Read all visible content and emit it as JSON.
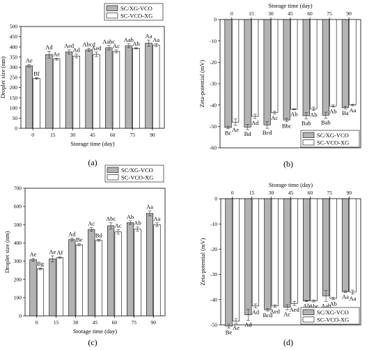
{
  "colors": {
    "gray": "#b3b3b3",
    "white": "#ffffff",
    "axis": "#000000"
  },
  "chart_data": [
    {
      "panel_label": "(a)",
      "type": "bar",
      "xlabel": "Storage time (day)",
      "ylabel": "Droplet size (nm)",
      "ylim": [
        0,
        500
      ],
      "yticks": [
        "0",
        "50",
        "100",
        "150",
        "200",
        "250",
        "300",
        "350",
        "400",
        "450",
        "500"
      ],
      "categories": [
        "0",
        "15",
        "30",
        "45",
        "60",
        "75",
        "90"
      ],
      "legend_position": "top-right",
      "series": [
        {
          "name": "SC/XG-VCO",
          "color": "#b3b3b3",
          "values": [
            307,
            362,
            375,
            385,
            395,
            405,
            418
          ],
          "errors": [
            6,
            17,
            10,
            7,
            11,
            10,
            15
          ],
          "labels": [
            "Ae",
            "Ad",
            "Aed",
            "Abcd",
            "Aabc",
            "Aab",
            "Aa"
          ]
        },
        {
          "name": "SC-VCO-XG",
          "color": "#ffffff",
          "values": [
            245,
            340,
            355,
            363,
            377,
            393,
            408
          ],
          "errors": [
            4,
            5,
            9,
            11,
            7,
            3,
            7
          ],
          "labels": [
            "Bf",
            "Ae",
            "Ad",
            "Aed",
            "Ac",
            "Ab",
            "Aa"
          ]
        }
      ]
    },
    {
      "panel_label": "(b)",
      "type": "bar",
      "xlabel": "Storage time (day)",
      "ylabel": "Zeta-potential (mV)",
      "ylim": [
        -60,
        0
      ],
      "yticks": [
        "0",
        "-10",
        "-20",
        "-30",
        "-40",
        "-50",
        "-60"
      ],
      "categories": [
        "0",
        "15",
        "30",
        "45",
        "60",
        "75",
        "90"
      ],
      "x_axis_position": "top",
      "legend_position": "bottom-right",
      "series": [
        {
          "name": "SC/XG-VCO",
          "color": "#b3b3b3",
          "values": [
            -50.5,
            -50.3,
            -49.3,
            -47.0,
            -45.0,
            -44.8,
            -41.2
          ],
          "errors": [
            0.6,
            1.2,
            1.6,
            0.8,
            1.5,
            1.4,
            0.6
          ],
          "labels": [
            "Bc",
            "Bd",
            "Bcd",
            "Bbc",
            "Bab",
            "Bab",
            "Ba"
          ]
        },
        {
          "name": "SC-VCO-XG",
          "color": "#ffffff",
          "values": [
            -48.0,
            -45.3,
            -43.5,
            -42.0,
            -41.8,
            -40.5,
            -40.0
          ],
          "errors": [
            1.5,
            1.0,
            0.6,
            0.3,
            0.8,
            0.5,
            0.4
          ],
          "labels": [
            "Ae",
            "Ad",
            "Ac",
            "Ab",
            "Ab",
            "Ab",
            "Aa"
          ]
        }
      ]
    },
    {
      "panel_label": "(c)",
      "type": "bar",
      "xlabel": "Storage time (day)",
      "ylabel": "Droplet size (nm)",
      "ylim": [
        0,
        700
      ],
      "yticks": [
        "0",
        "100",
        "200",
        "300",
        "400",
        "500",
        "600",
        "700"
      ],
      "categories": [
        "0",
        "15",
        "30",
        "45",
        "60",
        "75",
        "90"
      ],
      "legend_position": "top-right",
      "series": [
        {
          "name": "SC/XG-VCO",
          "color": "#b3b3b3",
          "values": [
            308,
            313,
            418,
            474,
            494,
            511,
            562
          ],
          "errors": [
            8,
            16,
            8,
            10,
            17,
            10,
            14
          ],
          "labels": [
            "Ae",
            "Ae",
            "Ad",
            "Ac",
            "Abc",
            "Ab",
            "Aa"
          ]
        },
        {
          "name": "SC-VCO-XG",
          "color": "#ffffff",
          "values": [
            258,
            320,
            390,
            414,
            460,
            476,
            500
          ],
          "errors": [
            5,
            5,
            5,
            5,
            12,
            11,
            10
          ],
          "labels": [
            "Bg",
            "Af",
            "Be",
            "Bd",
            "Ac",
            "Ab",
            "Aa"
          ]
        }
      ]
    },
    {
      "panel_label": "(d)",
      "type": "bar",
      "xlabel": "Storage time (day)",
      "ylabel": "Zeta-potential (mV)",
      "ylim": [
        -50,
        0
      ],
      "yticks": [
        "0",
        "-10",
        "-20",
        "-30",
        "-40",
        "-50"
      ],
      "categories": [
        "0",
        "15",
        "30",
        "45",
        "60",
        "75",
        "90"
      ],
      "x_axis_position": "top",
      "legend_position": "bottom-right",
      "series": [
        {
          "name": "SC/XG-VCO",
          "color": "#b3b3b3",
          "values": [
            -50.5,
            -46.0,
            -44.0,
            -43.0,
            -40.5,
            -38.5,
            -36.8
          ],
          "errors": [
            0.8,
            2.2,
            0.5,
            1.0,
            0.3,
            2.2,
            0.3
          ],
          "labels": [
            "Be",
            "Ad",
            "Bcd",
            "Ac",
            "Ab",
            "Aab",
            "Aa"
          ]
        },
        {
          "name": "SC-VCO-XG",
          "color": "#ffffff",
          "values": [
            -48.5,
            -42.5,
            -42.5,
            -41.5,
            -40.5,
            -39.5,
            -37.0
          ],
          "errors": [
            1.0,
            0.8,
            0.5,
            0.8,
            0.4,
            0.4,
            0.8
          ],
          "labels": [
            "Ae",
            "Ad",
            "Aed",
            "Aed",
            "Abc",
            "Ab",
            "Aa"
          ]
        }
      ]
    }
  ]
}
